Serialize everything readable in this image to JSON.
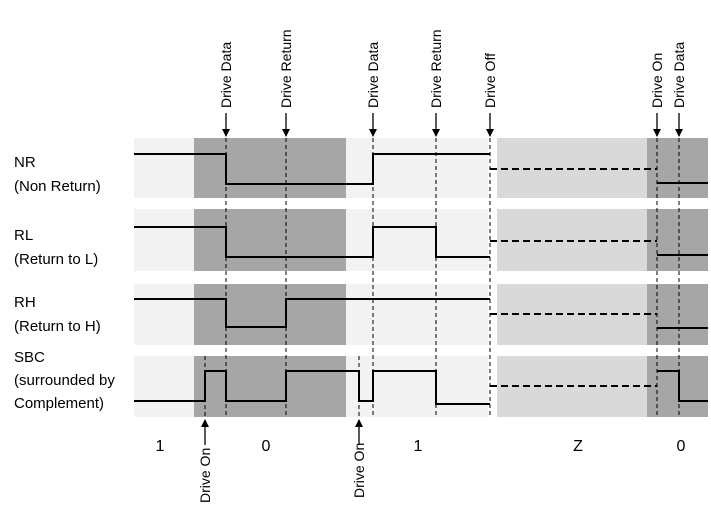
{
  "signals": [
    {
      "id": "nr",
      "lines": [
        "NR",
        "(Non Return)"
      ]
    },
    {
      "id": "rl",
      "lines": [
        "RL",
        "(Return to L)"
      ]
    },
    {
      "id": "rh",
      "lines": [
        "RH",
        "(Return to H)"
      ]
    },
    {
      "id": "sbc",
      "lines": [
        "SBC",
        "(surrounded by",
        "Complement)"
      ]
    }
  ],
  "top_events": [
    "Drive Data",
    "Drive Return",
    "Drive Data",
    "Drive Return",
    "Drive Off",
    "Drive On",
    "Drive Data"
  ],
  "bottom_events": [
    "Drive On",
    "Drive On"
  ],
  "states": [
    "1",
    "0",
    "1",
    "Z",
    "0"
  ],
  "colors": {
    "light_band": "#f2f2f2",
    "dark_band": "#a6a6a6",
    "z_band": "#d9d9d9",
    "line": "#000000"
  }
}
